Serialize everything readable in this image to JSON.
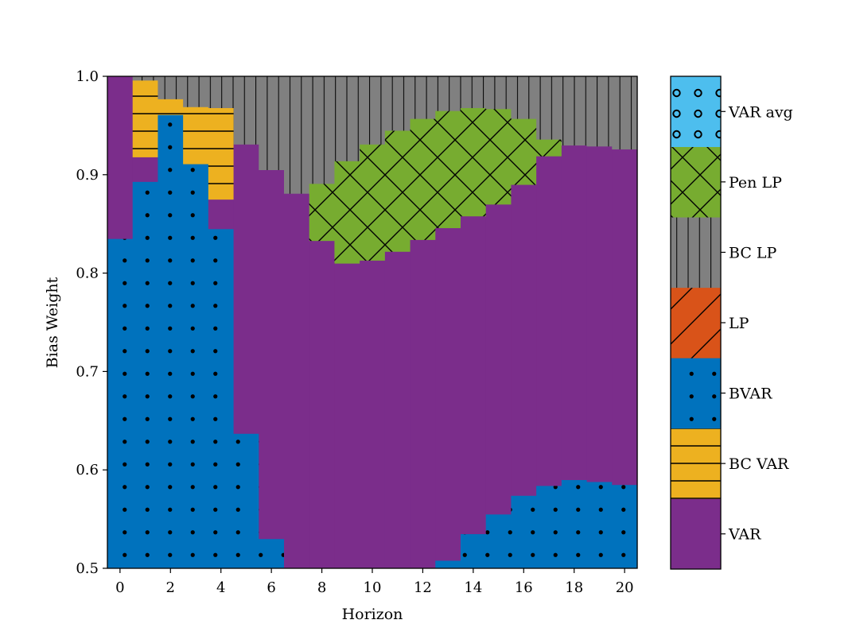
{
  "chart_data": {
    "type": "heatmap",
    "title": "",
    "xlabel": "Horizon",
    "ylabel": "Bias Weight",
    "xlim": [
      -0.5,
      20.5
    ],
    "ylim": [
      0.5,
      1.0
    ],
    "xticks": [
      "0",
      "2",
      "4",
      "6",
      "8",
      "10",
      "12",
      "14",
      "16",
      "18",
      "20"
    ],
    "yticks": [
      "0.5",
      "0.6",
      "0.7",
      "0.8",
      "0.9",
      "1.0"
    ],
    "legend_placement": "right colorbar",
    "categories": [
      {
        "name": "VAR",
        "color": "#7b2d8b",
        "pattern": "none"
      },
      {
        "name": "BC VAR",
        "color": "#edb120",
        "pattern": "horizontal"
      },
      {
        "name": "BVAR",
        "color": "#0072bd",
        "pattern": "dots"
      },
      {
        "name": "LP",
        "color": "#d95319",
        "pattern": "diagonal"
      },
      {
        "name": "BC LP",
        "color": "#808080",
        "pattern": "vertical"
      },
      {
        "name": "Pen LP",
        "color": "#77ac30",
        "pattern": "crosshatch"
      },
      {
        "name": "VAR avg",
        "color": "#4dbeee",
        "pattern": "circles"
      }
    ],
    "best_method_regions": [
      {
        "horizon": 0,
        "ranges": [
          {
            "method": "BVAR",
            "from": 0.5,
            "to": 0.835
          },
          {
            "method": "VAR",
            "from": 0.835,
            "to": 1.0
          }
        ]
      },
      {
        "horizon": 1,
        "ranges": [
          {
            "method": "BVAR",
            "from": 0.5,
            "to": 0.893
          },
          {
            "method": "VAR",
            "from": 0.893,
            "to": 0.918
          },
          {
            "method": "BC VAR",
            "from": 0.918,
            "to": 0.996
          },
          {
            "method": "BC LP",
            "from": 0.996,
            "to": 1.0
          }
        ]
      },
      {
        "horizon": 2,
        "ranges": [
          {
            "method": "BVAR",
            "from": 0.5,
            "to": 0.961
          },
          {
            "method": "BC VAR",
            "from": 0.961,
            "to": 0.977
          },
          {
            "method": "BC LP",
            "from": 0.977,
            "to": 1.0
          }
        ]
      },
      {
        "horizon": 3,
        "ranges": [
          {
            "method": "BVAR",
            "from": 0.5,
            "to": 0.911
          },
          {
            "method": "BC VAR",
            "from": 0.911,
            "to": 0.969
          },
          {
            "method": "BC LP",
            "from": 0.969,
            "to": 1.0
          }
        ]
      },
      {
        "horizon": 4,
        "ranges": [
          {
            "method": "BVAR",
            "from": 0.5,
            "to": 0.845
          },
          {
            "method": "VAR",
            "from": 0.845,
            "to": 0.875
          },
          {
            "method": "BC VAR",
            "from": 0.875,
            "to": 0.968
          },
          {
            "method": "BC LP",
            "from": 0.968,
            "to": 1.0
          }
        ]
      },
      {
        "horizon": 5,
        "ranges": [
          {
            "method": "BVAR",
            "from": 0.5,
            "to": 0.637
          },
          {
            "method": "VAR",
            "from": 0.637,
            "to": 0.931
          },
          {
            "method": "BC LP",
            "from": 0.931,
            "to": 1.0
          }
        ]
      },
      {
        "horizon": 6,
        "ranges": [
          {
            "method": "BVAR",
            "from": 0.5,
            "to": 0.53
          },
          {
            "method": "VAR",
            "from": 0.53,
            "to": 0.905
          },
          {
            "method": "BC LP",
            "from": 0.905,
            "to": 1.0
          }
        ]
      },
      {
        "horizon": 7,
        "ranges": [
          {
            "method": "VAR",
            "from": 0.5,
            "to": 0.881
          },
          {
            "method": "BC LP",
            "from": 0.881,
            "to": 1.0
          }
        ]
      },
      {
        "horizon": 8,
        "ranges": [
          {
            "method": "VAR",
            "from": 0.5,
            "to": 0.833
          },
          {
            "method": "Pen LP",
            "from": 0.833,
            "to": 0.891
          },
          {
            "method": "BC LP",
            "from": 0.891,
            "to": 1.0
          }
        ]
      },
      {
        "horizon": 9,
        "ranges": [
          {
            "method": "VAR",
            "from": 0.5,
            "to": 0.81
          },
          {
            "method": "Pen LP",
            "from": 0.81,
            "to": 0.914
          },
          {
            "method": "BC LP",
            "from": 0.914,
            "to": 1.0
          }
        ]
      },
      {
        "horizon": 10,
        "ranges": [
          {
            "method": "VAR",
            "from": 0.5,
            "to": 0.813
          },
          {
            "method": "Pen LP",
            "from": 0.813,
            "to": 0.931
          },
          {
            "method": "BC LP",
            "from": 0.931,
            "to": 1.0
          }
        ]
      },
      {
        "horizon": 11,
        "ranges": [
          {
            "method": "VAR",
            "from": 0.5,
            "to": 0.822
          },
          {
            "method": "Pen LP",
            "from": 0.822,
            "to": 0.945
          },
          {
            "method": "BC LP",
            "from": 0.945,
            "to": 1.0
          }
        ]
      },
      {
        "horizon": 12,
        "ranges": [
          {
            "method": "VAR",
            "from": 0.5,
            "to": 0.834
          },
          {
            "method": "Pen LP",
            "from": 0.834,
            "to": 0.957
          },
          {
            "method": "BC LP",
            "from": 0.957,
            "to": 1.0
          }
        ]
      },
      {
        "horizon": 13,
        "ranges": [
          {
            "method": "BVAR",
            "from": 0.5,
            "to": 0.508
          },
          {
            "method": "VAR",
            "from": 0.508,
            "to": 0.846
          },
          {
            "method": "Pen LP",
            "from": 0.846,
            "to": 0.965
          },
          {
            "method": "BC LP",
            "from": 0.965,
            "to": 1.0
          }
        ]
      },
      {
        "horizon": 14,
        "ranges": [
          {
            "method": "BVAR",
            "from": 0.5,
            "to": 0.535
          },
          {
            "method": "VAR",
            "from": 0.535,
            "to": 0.858
          },
          {
            "method": "Pen LP",
            "from": 0.858,
            "to": 0.968
          },
          {
            "method": "BC LP",
            "from": 0.968,
            "to": 1.0
          }
        ]
      },
      {
        "horizon": 15,
        "ranges": [
          {
            "method": "BVAR",
            "from": 0.5,
            "to": 0.555
          },
          {
            "method": "VAR",
            "from": 0.555,
            "to": 0.87
          },
          {
            "method": "Pen LP",
            "from": 0.87,
            "to": 0.967
          },
          {
            "method": "BC LP",
            "from": 0.967,
            "to": 1.0
          }
        ]
      },
      {
        "horizon": 16,
        "ranges": [
          {
            "method": "BVAR",
            "from": 0.5,
            "to": 0.574
          },
          {
            "method": "VAR",
            "from": 0.574,
            "to": 0.89
          },
          {
            "method": "Pen LP",
            "from": 0.89,
            "to": 0.957
          },
          {
            "method": "BC LP",
            "from": 0.957,
            "to": 1.0
          }
        ]
      },
      {
        "horizon": 17,
        "ranges": [
          {
            "method": "BVAR",
            "from": 0.5,
            "to": 0.584
          },
          {
            "method": "VAR",
            "from": 0.584,
            "to": 0.919
          },
          {
            "method": "Pen LP",
            "from": 0.919,
            "to": 0.936
          },
          {
            "method": "BC LP",
            "from": 0.936,
            "to": 1.0
          }
        ]
      },
      {
        "horizon": 18,
        "ranges": [
          {
            "method": "BVAR",
            "from": 0.5,
            "to": 0.59
          },
          {
            "method": "VAR",
            "from": 0.59,
            "to": 0.93
          },
          {
            "method": "BC LP",
            "from": 0.93,
            "to": 1.0
          }
        ]
      },
      {
        "horizon": 19,
        "ranges": [
          {
            "method": "BVAR",
            "from": 0.5,
            "to": 0.588
          },
          {
            "method": "VAR",
            "from": 0.588,
            "to": 0.929
          },
          {
            "method": "BC LP",
            "from": 0.929,
            "to": 1.0
          }
        ]
      },
      {
        "horizon": 20,
        "ranges": [
          {
            "method": "BVAR",
            "from": 0.5,
            "to": 0.585
          },
          {
            "method": "VAR",
            "from": 0.585,
            "to": 0.926
          },
          {
            "method": "BC LP",
            "from": 0.926,
            "to": 1.0
          }
        ]
      }
    ]
  }
}
